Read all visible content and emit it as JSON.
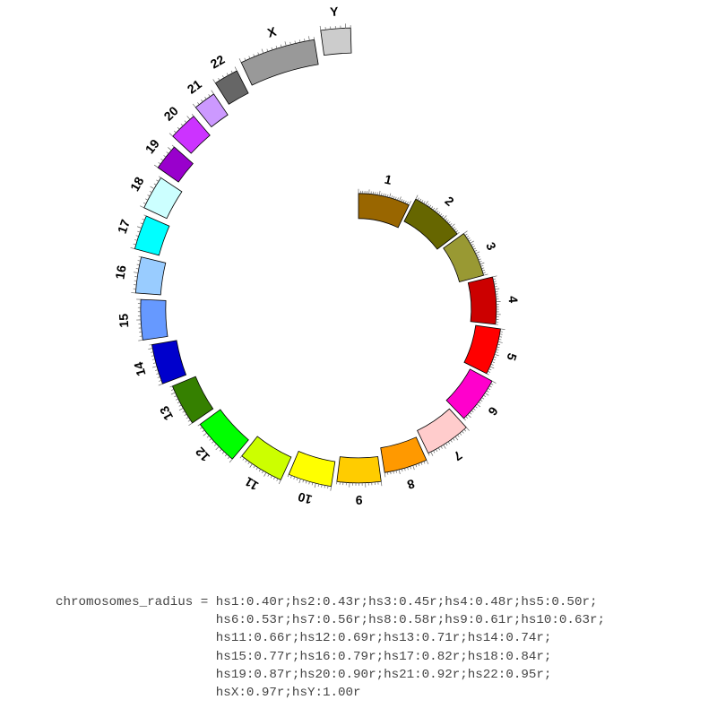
{
  "ideogram": {
    "chromosomes": [
      {
        "id": "hs1",
        "label": "1",
        "radius_fraction": 0.4,
        "color": "#996600"
      },
      {
        "id": "hs2",
        "label": "2",
        "radius_fraction": 0.43,
        "color": "#666600"
      },
      {
        "id": "hs3",
        "label": "3",
        "radius_fraction": 0.45,
        "color": "#999933"
      },
      {
        "id": "hs4",
        "label": "4",
        "radius_fraction": 0.48,
        "color": "#cc0000"
      },
      {
        "id": "hs5",
        "label": "5",
        "radius_fraction": 0.5,
        "color": "#ff0000"
      },
      {
        "id": "hs6",
        "label": "6",
        "radius_fraction": 0.53,
        "color": "#ff00cc"
      },
      {
        "id": "hs7",
        "label": "7",
        "radius_fraction": 0.56,
        "color": "#ffcccc"
      },
      {
        "id": "hs8",
        "label": "8",
        "radius_fraction": 0.58,
        "color": "#ff9900"
      },
      {
        "id": "hs9",
        "label": "9",
        "radius_fraction": 0.61,
        "color": "#ffcc00"
      },
      {
        "id": "hs10",
        "label": "10",
        "radius_fraction": 0.63,
        "color": "#ffff00"
      },
      {
        "id": "hs11",
        "label": "11",
        "radius_fraction": 0.66,
        "color": "#ccff00"
      },
      {
        "id": "hs12",
        "label": "12",
        "radius_fraction": 0.69,
        "color": "#00ff00"
      },
      {
        "id": "hs13",
        "label": "13",
        "radius_fraction": 0.71,
        "color": "#358000"
      },
      {
        "id": "hs14",
        "label": "14",
        "radius_fraction": 0.74,
        "color": "#0000cc"
      },
      {
        "id": "hs15",
        "label": "15",
        "radius_fraction": 0.77,
        "color": "#6699ff"
      },
      {
        "id": "hs16",
        "label": "16",
        "radius_fraction": 0.79,
        "color": "#99ccff"
      },
      {
        "id": "hs17",
        "label": "17",
        "radius_fraction": 0.82,
        "color": "#00ffff"
      },
      {
        "id": "hs18",
        "label": "18",
        "radius_fraction": 0.84,
        "color": "#ccffff"
      },
      {
        "id": "hs19",
        "label": "19",
        "radius_fraction": 0.87,
        "color": "#9900cc"
      },
      {
        "id": "hs20",
        "label": "20",
        "radius_fraction": 0.9,
        "color": "#cc33ff"
      },
      {
        "id": "hs21",
        "label": "21",
        "radius_fraction": 0.92,
        "color": "#cc99ff"
      },
      {
        "id": "hs22",
        "label": "22",
        "radius_fraction": 0.95,
        "color": "#666666"
      },
      {
        "id": "hsX",
        "label": "X",
        "radius_fraction": 0.97,
        "color": "#999999"
      },
      {
        "id": "hsY",
        "label": "Y",
        "radius_fraction": 1.0,
        "color": "#cccccc"
      }
    ]
  },
  "config": {
    "lines": [
      "chromosomes_radius = hs1:0.40r;hs2:0.43r;hs3:0.45r;hs4:0.48r;hs5:0.50r;",
      "                     hs6:0.53r;hs7:0.56r;hs8:0.58r;hs9:0.61r;hs10:0.63r;",
      "                     hs11:0.66r;hs12:0.69r;hs13:0.71r;hs14:0.74r;",
      "                     hs15:0.77r;hs16:0.79r;hs17:0.82r;hs18:0.84r;",
      "                     hs19:0.87r;hs20:0.90r;hs21:0.92r;hs22:0.95r;",
      "                     hsX:0.97r;hsY:1.00r"
    ]
  }
}
